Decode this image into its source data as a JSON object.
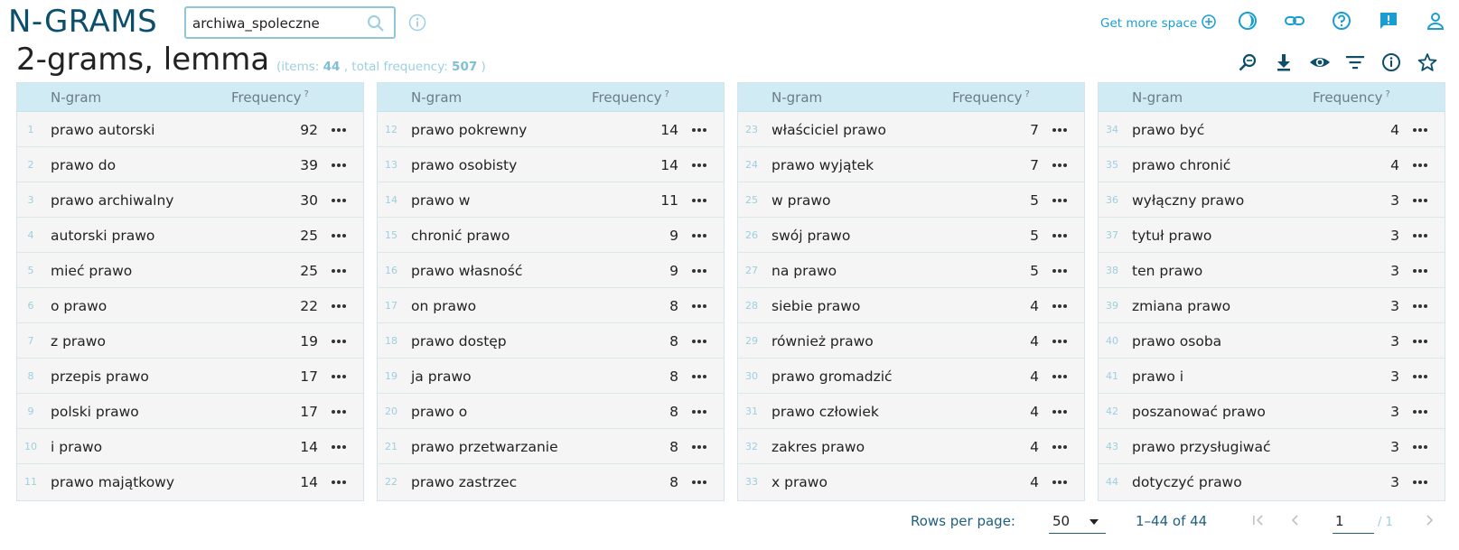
{
  "app": {
    "logo": "N-GRAMS"
  },
  "search": {
    "value": "archiwa_spoleczne"
  },
  "header": {
    "more_space_label": "Get more space",
    "icons": [
      "theme-icon",
      "link-icon",
      "help-icon",
      "feedback-icon",
      "user-icon"
    ]
  },
  "title": {
    "text": "2-grams, lemma",
    "items_prefix": "(items: ",
    "items": "44",
    "freq_prefix": " , total frequency: ",
    "total_frequency": "507",
    "suffix": " )"
  },
  "toolbar": {
    "icons": [
      "zoom-icon",
      "download-icon",
      "view-icon",
      "filter-icon",
      "info-icon",
      "star-icon"
    ]
  },
  "table": {
    "col_ngram": "N-gram",
    "col_freq": "Frequency",
    "col_q": "?",
    "columns": [
      {
        "rows": [
          {
            "num": "1",
            "ngram": "prawo autorski",
            "freq": "92"
          },
          {
            "num": "2",
            "ngram": "prawo do",
            "freq": "39"
          },
          {
            "num": "3",
            "ngram": "prawo archiwalny",
            "freq": "30"
          },
          {
            "num": "4",
            "ngram": "autorski prawo",
            "freq": "25"
          },
          {
            "num": "5",
            "ngram": "mieć prawo",
            "freq": "25"
          },
          {
            "num": "6",
            "ngram": "o prawo",
            "freq": "22"
          },
          {
            "num": "7",
            "ngram": "z prawo",
            "freq": "19"
          },
          {
            "num": "8",
            "ngram": "przepis prawo",
            "freq": "17"
          },
          {
            "num": "9",
            "ngram": "polski prawo",
            "freq": "17"
          },
          {
            "num": "10",
            "ngram": "i prawo",
            "freq": "14"
          },
          {
            "num": "11",
            "ngram": "prawo majątkowy",
            "freq": "14"
          }
        ]
      },
      {
        "rows": [
          {
            "num": "12",
            "ngram": "prawo pokrewny",
            "freq": "14"
          },
          {
            "num": "13",
            "ngram": "prawo osobisty",
            "freq": "14"
          },
          {
            "num": "14",
            "ngram": "prawo w",
            "freq": "11"
          },
          {
            "num": "15",
            "ngram": "chronić prawo",
            "freq": "9"
          },
          {
            "num": "16",
            "ngram": "prawo własność",
            "freq": "9"
          },
          {
            "num": "17",
            "ngram": "on prawo",
            "freq": "8"
          },
          {
            "num": "18",
            "ngram": "prawo dostęp",
            "freq": "8"
          },
          {
            "num": "19",
            "ngram": "ja prawo",
            "freq": "8"
          },
          {
            "num": "20",
            "ngram": "prawo o",
            "freq": "8"
          },
          {
            "num": "21",
            "ngram": "prawo przetwarzanie",
            "freq": "8"
          },
          {
            "num": "22",
            "ngram": "prawo zastrzec",
            "freq": "8"
          }
        ]
      },
      {
        "rows": [
          {
            "num": "23",
            "ngram": "właściciel prawo",
            "freq": "7"
          },
          {
            "num": "24",
            "ngram": "prawo wyjątek",
            "freq": "7"
          },
          {
            "num": "25",
            "ngram": "w prawo",
            "freq": "5"
          },
          {
            "num": "26",
            "ngram": "swój prawo",
            "freq": "5"
          },
          {
            "num": "27",
            "ngram": "na prawo",
            "freq": "5"
          },
          {
            "num": "28",
            "ngram": "siebie prawo",
            "freq": "4"
          },
          {
            "num": "29",
            "ngram": "również prawo",
            "freq": "4"
          },
          {
            "num": "30",
            "ngram": "prawo gromadzić",
            "freq": "4"
          },
          {
            "num": "31",
            "ngram": "prawo człowiek",
            "freq": "4"
          },
          {
            "num": "32",
            "ngram": "zakres prawo",
            "freq": "4"
          },
          {
            "num": "33",
            "ngram": "x prawo",
            "freq": "4"
          }
        ]
      },
      {
        "rows": [
          {
            "num": "34",
            "ngram": "prawo być",
            "freq": "4"
          },
          {
            "num": "35",
            "ngram": "prawo chronić",
            "freq": "4"
          },
          {
            "num": "36",
            "ngram": "wyłączny prawo",
            "freq": "3"
          },
          {
            "num": "37",
            "ngram": "tytuł prawo",
            "freq": "3"
          },
          {
            "num": "38",
            "ngram": "ten prawo",
            "freq": "3"
          },
          {
            "num": "39",
            "ngram": "zmiana prawo",
            "freq": "3"
          },
          {
            "num": "40",
            "ngram": "prawo osoba",
            "freq": "3"
          },
          {
            "num": "41",
            "ngram": "prawo i",
            "freq": "3"
          },
          {
            "num": "42",
            "ngram": "poszanować prawo",
            "freq": "3"
          },
          {
            "num": "43",
            "ngram": "prawo przysługiwać",
            "freq": "3"
          },
          {
            "num": "44",
            "ngram": "dotyczyć prawo",
            "freq": "3"
          }
        ]
      }
    ]
  },
  "pagination": {
    "rows_per_page_label": "Rows per page:",
    "rows_per_page_value": "50",
    "range_text": "1–44 of 44",
    "current_page": "1",
    "total_pages_text": "/ 1"
  },
  "colors": {
    "brand": "#0b4f6c",
    "accent": "#1a9ed1",
    "header_bg": "#d1ebf4",
    "muted": "#9ccfe0"
  }
}
